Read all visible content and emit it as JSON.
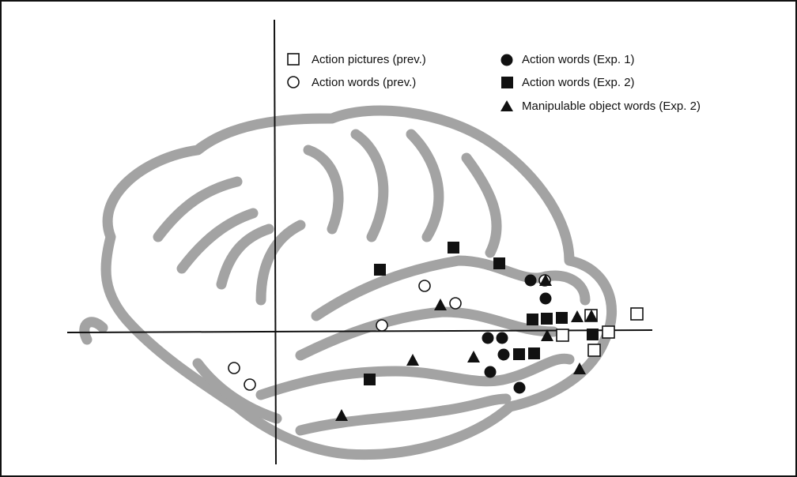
{
  "legend": {
    "items": [
      {
        "label": "Action pictures (prev.)"
      },
      {
        "label": "Action words (prev.)"
      },
      {
        "label": "Action words (Exp. 1)"
      },
      {
        "label": "Action words (Exp. 2)"
      },
      {
        "label": "Manipulable object words (Exp. 2)"
      }
    ]
  }
}
